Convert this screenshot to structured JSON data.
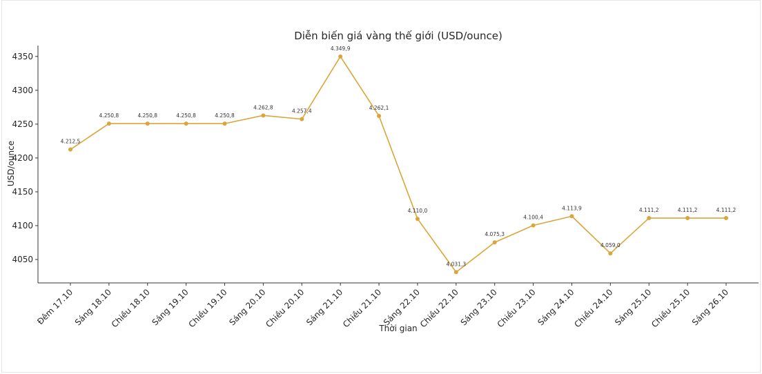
{
  "chart_data": {
    "type": "line",
    "title": "Diễn biến giá vàng thế giới (USD/ounce)",
    "xlabel": "Thời gian",
    "ylabel": "USD/ounce",
    "categories": [
      "Đêm 17.10",
      "Sáng 18.10",
      "Chiều 18.10",
      "Sáng 19.10",
      "Chiều 19.10",
      "Sáng 20.10",
      "Chiều 20.10",
      "Sáng 21.10",
      "Chiều 21.10",
      "Sáng 22.10",
      "Chiều 22.10",
      "Sáng 23.10",
      "Chiều 23.10",
      "Sáng 24.10",
      "Chiều 24.10",
      "Sáng 25.10",
      "Chiều 25.10",
      "Sáng 26.10"
    ],
    "values": [
      4212.5,
      4250.8,
      4250.8,
      4250.8,
      4250.8,
      4262.8,
      4257.4,
      4349.9,
      4262.1,
      4110.0,
      4031.3,
      4075.3,
      4100.4,
      4113.9,
      4059.0,
      4111.2,
      4111.2,
      4111.2
    ],
    "data_labels": [
      "4.212,5",
      "4.250,8",
      "4.250,8",
      "4.250,8",
      "4.250,8",
      "4.262,8",
      "4.257,4",
      "4.349,9",
      "4.262,1",
      "4.110,0",
      "4.031,3",
      "4.075,3",
      "4.100,4",
      "4.113,9",
      "4.059,0",
      "4.111,2",
      "4.111,2",
      "4.111,2"
    ],
    "yticks": [
      4050,
      4100,
      4150,
      4200,
      4250,
      4300,
      4350
    ],
    "ylim": [
      4015.4,
      4366.1
    ],
    "grid": false,
    "line_color": "#DAA53A"
  }
}
